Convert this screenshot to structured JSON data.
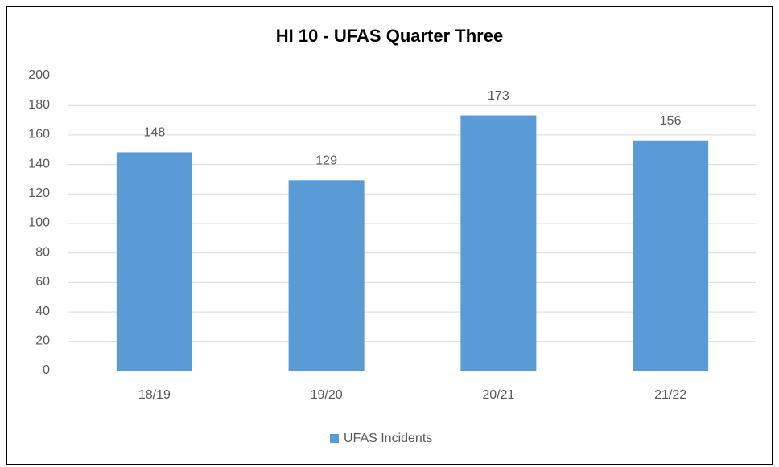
{
  "chart_data": {
    "type": "bar",
    "title": "HI 10 - UFAS Quarter Three",
    "categories": [
      "18/19",
      "19/20",
      "20/21",
      "21/22"
    ],
    "series": [
      {
        "name": "UFAS Incidents",
        "color": "#5b9bd5",
        "values": [
          148,
          129,
          173,
          156
        ]
      }
    ],
    "ylim": [
      0,
      200
    ],
    "yticks": [
      0,
      20,
      40,
      60,
      80,
      100,
      120,
      140,
      160,
      180,
      200
    ],
    "grid": true,
    "legend": "bottom",
    "data_labels": true
  }
}
